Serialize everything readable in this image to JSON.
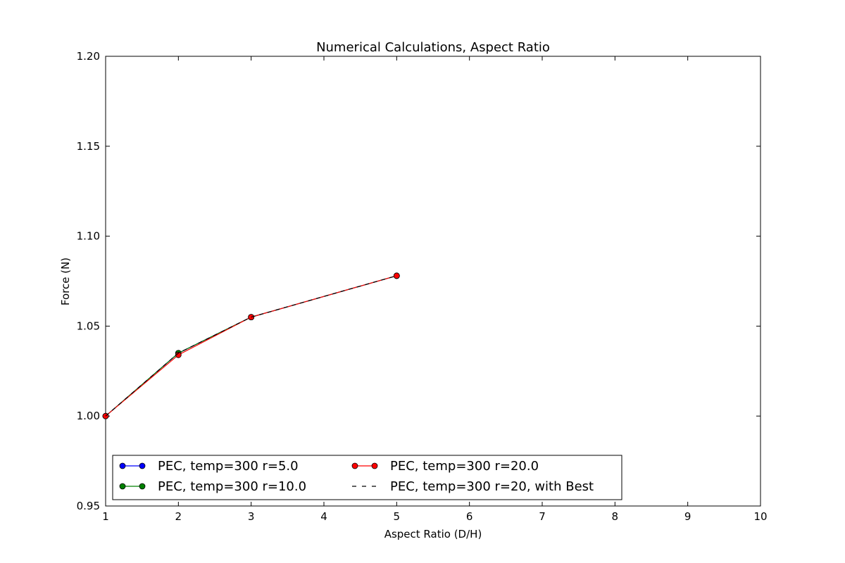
{
  "chart_data": {
    "type": "line",
    "title": "Numerical Calculations, Aspect Ratio",
    "xlabel": "Aspect Ratio (D/H)",
    "ylabel": "Force (N)",
    "xlim": [
      1,
      10
    ],
    "ylim": [
      0.95,
      1.2
    ],
    "xticks": [
      1,
      2,
      3,
      4,
      5,
      6,
      7,
      8,
      9,
      10
    ],
    "yticks": [
      0.95,
      1.0,
      1.05,
      1.1,
      1.15,
      1.2
    ],
    "xtick_labels": [
      "1",
      "2",
      "3",
      "4",
      "5",
      "6",
      "7",
      "8",
      "9",
      "10"
    ],
    "ytick_labels": [
      "0.95",
      "1.00",
      "1.05",
      "1.10",
      "1.15",
      "1.20"
    ],
    "grid": false,
    "legend_position": "lower-left",
    "series": [
      {
        "name": "PEC, temp=300 r=5.0",
        "color": "#0000ff",
        "style": "solid-marker",
        "x": [
          1,
          2,
          3,
          5
        ],
        "y": [
          1.0,
          1.035,
          1.055,
          1.078
        ]
      },
      {
        "name": "PEC, temp=300 r=10.0",
        "color": "#008000",
        "style": "solid-marker",
        "x": [
          1,
          2,
          3,
          5
        ],
        "y": [
          1.0,
          1.035,
          1.055,
          1.078
        ]
      },
      {
        "name": "PEC, temp=300 r=20.0",
        "color": "#ff0000",
        "style": "solid-marker",
        "x": [
          1,
          2,
          3,
          5
        ],
        "y": [
          1.0,
          1.034,
          1.055,
          1.078
        ]
      },
      {
        "name": "PEC, temp=300 r=20, with Best",
        "color": "#000000",
        "style": "dashed",
        "x": [
          1,
          2,
          3,
          5
        ],
        "y": [
          1.0,
          1.035,
          1.055,
          1.078
        ]
      }
    ]
  }
}
